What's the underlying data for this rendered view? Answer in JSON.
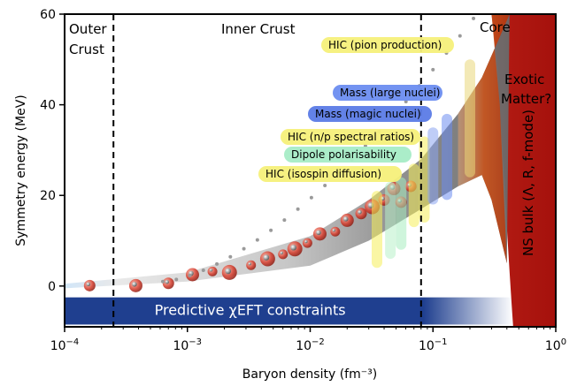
{
  "chart_data": {
    "type": "area",
    "xscale": "log",
    "xlim": [
      0.0001,
      1.0
    ],
    "ylim": [
      -9,
      60
    ],
    "xlabel": "Baryon density (fm⁻³)",
    "ylabel": "Symmetry energy (MeV)",
    "x_ticks": [
      {
        "value": 0.0001,
        "base": "10",
        "exp": "−4"
      },
      {
        "value": 0.001,
        "base": "10",
        "exp": "−3"
      },
      {
        "value": 0.01,
        "base": "10",
        "exp": "−2"
      },
      {
        "value": 0.1,
        "base": "10",
        "exp": "−1"
      },
      {
        "value": 1.0,
        "base": "10",
        "exp": "0"
      }
    ],
    "y_ticks": [
      0,
      20,
      40,
      60
    ],
    "boundaries": [
      {
        "name": "crust-core",
        "x": 0.00025
      },
      {
        "name": "inner-crust-core",
        "x": 0.08
      }
    ],
    "band_lower": {
      "x": [
        0.0001,
        0.001,
        0.01,
        0.03,
        0.08,
        0.16,
        0.25,
        0.3,
        0.4
      ],
      "y": [
        -0.5,
        1.0,
        4.5,
        10.0,
        17.0,
        22.0,
        24.5,
        19.0,
        5.0
      ]
    },
    "band_upper": {
      "x": [
        0.0001,
        0.001,
        0.01,
        0.03,
        0.08,
        0.16,
        0.25,
        0.35,
        0.42
      ],
      "y": [
        0.5,
        3.0,
        11.0,
        19.0,
        28.0,
        38.0,
        46.0,
        55.0,
        60.0
      ]
    },
    "regions": {
      "outer_crust_line1": "Outer",
      "outer_crust_line2": "Crust",
      "inner_crust": "Inner Crust",
      "core": "Core",
      "exotic_line1": "Exotic",
      "exotic_line2": "Matter?",
      "ns_bulk": "NS bulk (Λ, R, f-mode)"
    },
    "constraints": [
      {
        "label": "HIC (pion production)",
        "color": "#f5f07a"
      },
      {
        "label": "Mass (large nuclei)",
        "color": "#6b8df0"
      },
      {
        "label": "Mass (magic nuclei)",
        "color": "#5b7be6"
      },
      {
        "label": "HIC (n/p spectral ratios)",
        "color": "#f5f07a"
      },
      {
        "label": "Dipole polarisability",
        "color": "#a7ecc6"
      },
      {
        "label": "HIC (isospin diffusion)",
        "color": "#f5f07a"
      }
    ],
    "eft_band": {
      "label": "Predictive",
      "symbol": "χ",
      "label2": "EFT constraints",
      "color": "#1f3f8f"
    },
    "colors": {
      "core": "#c0392b",
      "exotic": "#b0150f",
      "band": "#a0a0a0",
      "eft": "#1f3f8f"
    }
  }
}
